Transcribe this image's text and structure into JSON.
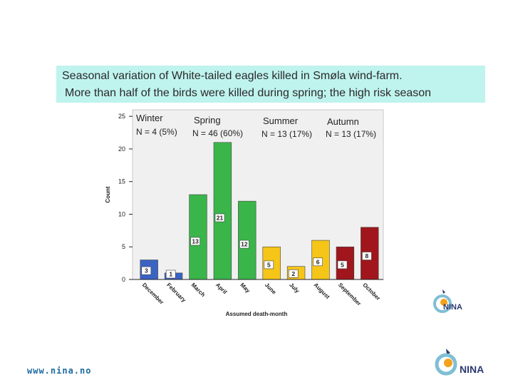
{
  "title": {
    "line1": "Seasonal variation of White-tailed eagles killed in Smøla wind-farm.",
    "line2": "More than half of the birds were killed during spring; the high risk season"
  },
  "chart_data": {
    "type": "bar",
    "categories": [
      "December",
      "February",
      "March",
      "April",
      "May",
      "June",
      "July",
      "August",
      "September",
      "October"
    ],
    "values": [
      3,
      1,
      13,
      21,
      12,
      5,
      2,
      6,
      5,
      8
    ],
    "bar_colors": [
      "#3a63c4",
      "#3a63c4",
      "#3ab54a",
      "#3ab54a",
      "#3ab54a",
      "#f5c518",
      "#f5c518",
      "#f5c518",
      "#a0161c",
      "#a0161c"
    ],
    "xlabel": "Assumed death-month",
    "ylabel": "Count",
    "ylim": [
      0,
      26
    ],
    "yticks": [
      0,
      5,
      10,
      15,
      20,
      25
    ],
    "grid": false,
    "season_labels": [
      {
        "name": "Winter",
        "stat": "N = 4 (5%)"
      },
      {
        "name": "Spring",
        "stat": "N = 46 (60%)"
      },
      {
        "name": "Summer",
        "stat": "N = 13 (17%)"
      },
      {
        "name": "Autumn",
        "stat": "N = 13 (17%)"
      }
    ]
  },
  "footer": {
    "url": "www.nina.no"
  },
  "logo": {
    "text": "NINA"
  },
  "colors": {
    "title_background": "#bff3ee",
    "plot_background": "#f0f0f0",
    "winter": "#3a63c4",
    "spring": "#3ab54a",
    "summer": "#f5c518",
    "autumn": "#a0161c"
  }
}
